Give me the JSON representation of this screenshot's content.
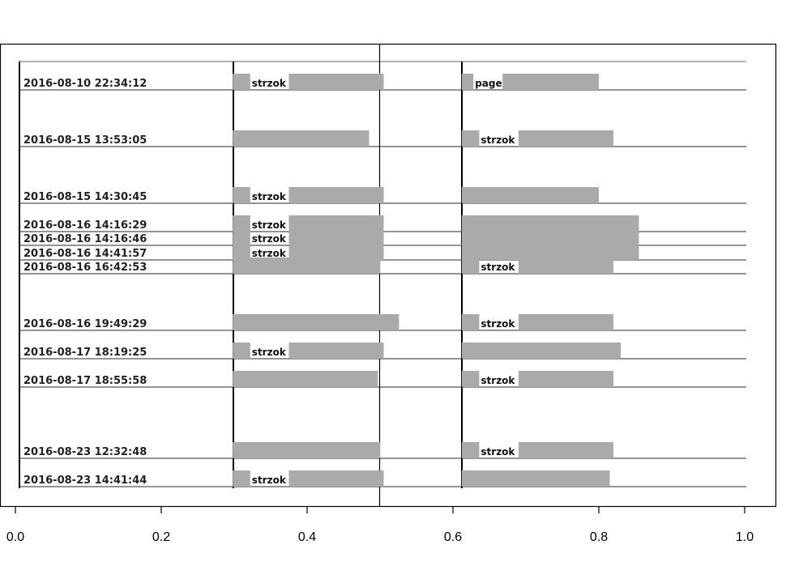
{
  "chart_data": {
    "type": "bar",
    "x_ticks": [
      "0.0",
      "0.2",
      "0.4",
      "0.6",
      "0.8",
      "1.0"
    ],
    "xlim": [
      0.0,
      1.0
    ],
    "grid": false,
    "colors": {
      "bar": "#aaaaaa",
      "line": "#000000"
    },
    "rows": [
      {
        "label": "2016-08-10 22:34:12",
        "left": [
          {
            "x0": 0.298,
            "x1": 0.322,
            "text": ""
          },
          {
            "x0": 0.322,
            "x1": 0.375,
            "text": "strzok"
          },
          {
            "x0": 0.375,
            "x1": 0.505,
            "text": ""
          }
        ],
        "right": [
          {
            "x0": 0.612,
            "x1": 0.628,
            "text": ""
          },
          {
            "x0": 0.628,
            "x1": 0.668,
            "text": "page"
          },
          {
            "x0": 0.668,
            "x1": 0.8,
            "text": ""
          }
        ]
      },
      {
        "label": "2016-08-15 13:53:05",
        "left": [
          {
            "x0": 0.298,
            "x1": 0.485,
            "text": ""
          }
        ],
        "right": [
          {
            "x0": 0.612,
            "x1": 0.636,
            "text": ""
          },
          {
            "x0": 0.636,
            "x1": 0.69,
            "text": "strzok"
          },
          {
            "x0": 0.69,
            "x1": 0.82,
            "text": ""
          }
        ]
      },
      {
        "label": "2016-08-15 14:30:45",
        "left": [
          {
            "x0": 0.298,
            "x1": 0.322,
            "text": ""
          },
          {
            "x0": 0.322,
            "x1": 0.375,
            "text": "strzok"
          },
          {
            "x0": 0.375,
            "x1": 0.505,
            "text": ""
          }
        ],
        "right": [
          {
            "x0": 0.612,
            "x1": 0.8,
            "text": ""
          }
        ]
      },
      {
        "label": "2016-08-16 14:16:29",
        "left": [
          {
            "x0": 0.298,
            "x1": 0.322,
            "text": ""
          },
          {
            "x0": 0.322,
            "x1": 0.375,
            "text": "strzok"
          },
          {
            "x0": 0.375,
            "x1": 0.505,
            "text": ""
          }
        ],
        "right": [
          {
            "x0": 0.612,
            "x1": 0.855,
            "text": ""
          }
        ]
      },
      {
        "label": "2016-08-16 14:16:46",
        "left": [
          {
            "x0": 0.298,
            "x1": 0.322,
            "text": ""
          },
          {
            "x0": 0.322,
            "x1": 0.375,
            "text": "strzok"
          },
          {
            "x0": 0.375,
            "x1": 0.505,
            "text": ""
          }
        ],
        "right": [
          {
            "x0": 0.612,
            "x1": 0.855,
            "text": ""
          }
        ]
      },
      {
        "label": "2016-08-16 14:41:57",
        "left": [
          {
            "x0": 0.298,
            "x1": 0.322,
            "text": ""
          },
          {
            "x0": 0.322,
            "x1": 0.375,
            "text": "strzok"
          },
          {
            "x0": 0.375,
            "x1": 0.505,
            "text": ""
          }
        ],
        "right": [
          {
            "x0": 0.612,
            "x1": 0.855,
            "text": ""
          }
        ]
      },
      {
        "label": "2016-08-16 16:42:53",
        "left": [
          {
            "x0": 0.298,
            "x1": 0.5,
            "text": ""
          }
        ],
        "right": [
          {
            "x0": 0.612,
            "x1": 0.636,
            "text": ""
          },
          {
            "x0": 0.636,
            "x1": 0.69,
            "text": "strzok"
          },
          {
            "x0": 0.69,
            "x1": 0.82,
            "text": ""
          }
        ]
      },
      {
        "label": "2016-08-16 19:49:29",
        "left": [
          {
            "x0": 0.298,
            "x1": 0.526,
            "text": ""
          }
        ],
        "right": [
          {
            "x0": 0.612,
            "x1": 0.636,
            "text": ""
          },
          {
            "x0": 0.636,
            "x1": 0.69,
            "text": "strzok"
          },
          {
            "x0": 0.69,
            "x1": 0.82,
            "text": ""
          }
        ]
      },
      {
        "label": "2016-08-17 18:19:25",
        "left": [
          {
            "x0": 0.298,
            "x1": 0.322,
            "text": ""
          },
          {
            "x0": 0.322,
            "x1": 0.375,
            "text": "strzok"
          },
          {
            "x0": 0.375,
            "x1": 0.505,
            "text": ""
          }
        ],
        "right": [
          {
            "x0": 0.612,
            "x1": 0.83,
            "text": ""
          }
        ]
      },
      {
        "label": "2016-08-17 18:55:58",
        "left": [
          {
            "x0": 0.298,
            "x1": 0.497,
            "text": ""
          }
        ],
        "right": [
          {
            "x0": 0.612,
            "x1": 0.636,
            "text": ""
          },
          {
            "x0": 0.636,
            "x1": 0.69,
            "text": "strzok"
          },
          {
            "x0": 0.69,
            "x1": 0.82,
            "text": ""
          }
        ]
      },
      {
        "label": "2016-08-23 12:32:48",
        "left": [
          {
            "x0": 0.298,
            "x1": 0.5,
            "text": ""
          }
        ],
        "right": [
          {
            "x0": 0.612,
            "x1": 0.636,
            "text": ""
          },
          {
            "x0": 0.636,
            "x1": 0.69,
            "text": "strzok"
          },
          {
            "x0": 0.69,
            "x1": 0.82,
            "text": ""
          }
        ]
      },
      {
        "label": "2016-08-23 14:41:44",
        "left": [
          {
            "x0": 0.298,
            "x1": 0.322,
            "text": ""
          },
          {
            "x0": 0.322,
            "x1": 0.375,
            "text": "strzok"
          },
          {
            "x0": 0.375,
            "x1": 0.505,
            "text": ""
          }
        ],
        "right": [
          {
            "x0": 0.612,
            "x1": 0.815,
            "text": ""
          }
        ]
      }
    ]
  }
}
